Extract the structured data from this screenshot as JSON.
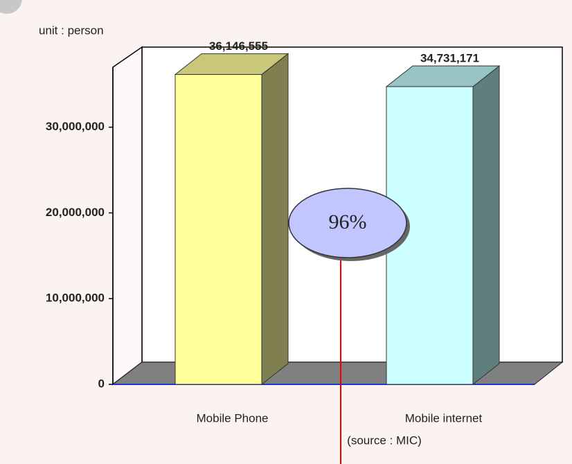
{
  "chart_data": {
    "type": "bar3d",
    "annotations": {
      "unit": "unit : person",
      "ratio": "96%",
      "source": "(source : MIC)"
    },
    "categories": [
      "Mobile Phone",
      "Mobile internet"
    ],
    "values": [
      36146555,
      34731171
    ],
    "value_labels": [
      "36,146,555",
      "34,731,171"
    ],
    "colors": [
      {
        "front": "#ffff99",
        "side": "#7f7f4f",
        "top": "#c8c878"
      },
      {
        "front": "#ccffff",
        "side": "#5f7f7f",
        "top": "#99c4c4"
      }
    ],
    "ylim": [
      0,
      37000000
    ],
    "yticks": [
      0,
      {
        "value": 10000000,
        "label": "10,000,000"
      },
      {
        "value": 20000000,
        "label": "20,000,000"
      },
      {
        "value": 30000000,
        "label": "30,000,000"
      }
    ]
  }
}
